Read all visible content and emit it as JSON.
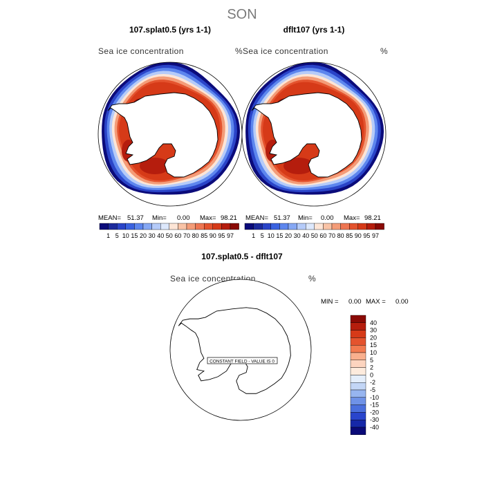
{
  "figure": {
    "title": "SON"
  },
  "panels": {
    "left": {
      "title": "107.splat0.5 (yrs 1-1)",
      "variable": "Sea ice concentration",
      "units": "%",
      "mean_label": "MEAN=",
      "mean": "51.37",
      "min_label": "Min=",
      "min": "0.00",
      "max_label": "Max=",
      "max": "98.21"
    },
    "right": {
      "title": "dflt107 (yrs 1-1)",
      "variable": "Sea ice concentration",
      "units": "%",
      "mean_label": "MEAN=",
      "mean": "51.37",
      "min_label": "Min=",
      "min": "0.00",
      "max_label": "Max=",
      "max": "98.21"
    },
    "diff": {
      "title": "107.splat0.5 - dflt107",
      "variable": "Sea ice concentration",
      "units": "%",
      "min_label": "MIN =",
      "min": "0.00",
      "max_label": "MAX =",
      "max": "0.00",
      "constant_note": "CONSTANT FIELD - VALUE IS 0"
    }
  },
  "chart_data": {
    "type": "heatmap",
    "title": "SON",
    "colorbar_levels": [
      "1",
      "5",
      "10",
      "15",
      "20",
      "30",
      "40",
      "50",
      "60",
      "70",
      "80",
      "85",
      "90",
      "95",
      "97"
    ],
    "colorbar_colors": [
      "#0b0b7a",
      "#1c2a9c",
      "#2a44c8",
      "#3a62e0",
      "#5d86ee",
      "#86a8f4",
      "#b5cbf9",
      "#dde8fc",
      "#fde5d6",
      "#f9c3a6",
      "#f49c78",
      "#ee7652",
      "#e4532e",
      "#d63a18",
      "#b51d0d",
      "#8a0a05"
    ],
    "diff_levels": [
      "40",
      "30",
      "20",
      "15",
      "10",
      "5",
      "2",
      "0",
      "-2",
      "-5",
      "-10",
      "-15",
      "-20",
      "-30",
      "-40"
    ],
    "diff_colors": [
      "#8a0a05",
      "#b51d0d",
      "#d63a18",
      "#e4532e",
      "#f27a50",
      "#f9b08e",
      "#fcd4bf",
      "#fdebdd",
      "#e4eefb",
      "#c3d6f6",
      "#97b5f0",
      "#6f92e7",
      "#4a6fdd",
      "#2945cc",
      "#1628a8",
      "#0a0a78"
    ],
    "region": "Antarctic (Southern Hemisphere polar stereographic)"
  }
}
